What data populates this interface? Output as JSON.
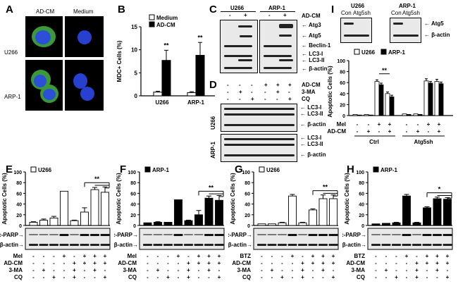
{
  "panels": {
    "A": {
      "letter": "A",
      "col_adcm": "AD-CM",
      "col_medium": "Medium",
      "row_u266": "U266",
      "row_arp1": "ARP-1"
    },
    "B": {
      "letter": "B",
      "ylabel": "MDC+ Cells (%)",
      "legend_medium": "Medium",
      "legend_adcm": "AD-CM",
      "sig1": "**",
      "sig2": "**"
    },
    "C": {
      "letter": "C",
      "cell1": "U266",
      "cell2": "ARP-1",
      "adcm_label": "AD-CM",
      "signs": [
        "-",
        "+",
        "-",
        "+"
      ],
      "bands": [
        "Atg3",
        "Atg5",
        "Beclin-1",
        "LC3-I",
        "LC3-II",
        "β-actin"
      ]
    },
    "D": {
      "letter": "D",
      "treat": [
        "AD-CM",
        "3-MA",
        "CQ"
      ],
      "signs": [
        [
          "-",
          "-",
          "-",
          "+",
          "+",
          "+"
        ],
        [
          "-",
          "+",
          "-",
          "-",
          "+",
          "-"
        ],
        [
          "-",
          "-",
          "+",
          "-",
          "-",
          "+"
        ]
      ],
      "row1": "U266",
      "row2": "ARP-1",
      "bands": [
        "LC3-I",
        "LC3-II",
        "β-actin"
      ]
    },
    "I": {
      "letter": "I",
      "cell1": "U266",
      "cell2": "ARP-1",
      "lanes": [
        "Con",
        "Atg5sh",
        "Con",
        "Atg5sh"
      ],
      "bands": [
        "Atg5",
        "β-actin"
      ],
      "legend1": "U266",
      "legend2": "ARP-1",
      "ylabel": "Apoptotic Cells (%)",
      "sig": "**",
      "rows": [
        {
          "label": "Mel",
          "signs": [
            "-",
            "-",
            "+",
            "+",
            "-",
            "-",
            "+",
            "+"
          ]
        },
        {
          "label": "AD-CM",
          "signs": [
            "-",
            "+",
            "-",
            "+",
            "-",
            "+",
            "-",
            "+"
          ]
        }
      ],
      "groups": [
        "Ctrl",
        "Atg5sh"
      ]
    },
    "E": {
      "letter": "E",
      "legend": "U266",
      "sig": "**",
      "ylabel": "Apoptotic Cells (%)",
      "drug": "Mel"
    },
    "F": {
      "letter": "F",
      "legend": "ARP-1",
      "sig": "**",
      "ylabel": "Apoptotic Cells (%)",
      "drug": "Mel"
    },
    "G": {
      "letter": "G",
      "legend": "U266",
      "sig": "**",
      "ylabel": "Apoptotic Cells (%)",
      "drug": "BTZ"
    },
    "H": {
      "letter": "H",
      "legend": "ARP-1",
      "sig": "*",
      "ylabel": "Apoptotic Cells (%)",
      "drug": "BTZ"
    },
    "blot_common": {
      "cparp": "c-PARP",
      "bactin": "β-actin",
      "rows": [
        {
          "label": "AD-CM",
          "signs": [
            "-",
            "-",
            "-",
            "-",
            "+",
            "+",
            "+",
            "+"
          ]
        },
        {
          "label": "3-MA",
          "signs": [
            "-",
            "+",
            "-",
            "-",
            "+",
            "-",
            "+",
            "-"
          ]
        },
        {
          "label": "CQ",
          "signs": [
            "-",
            "-",
            "+",
            "-",
            "+",
            "-",
            "-",
            "+"
          ]
        }
      ],
      "drug_signs": [
        "-",
        "-",
        "-",
        "+",
        "-",
        "+",
        "+",
        "+"
      ]
    }
  },
  "chart_data": [
    {
      "type": "bar",
      "panel": "B",
      "categories": [
        "U266",
        "ARP-1"
      ],
      "ylabel": "MDC+ Cells (%)",
      "ylim": [
        0,
        15
      ],
      "yticks": [
        0,
        5,
        10,
        15
      ],
      "series": [
        {
          "name": "Medium",
          "values": [
            0.8,
            0.7
          ],
          "errors": [
            0.2,
            0.2
          ]
        },
        {
          "name": "AD-CM",
          "values": [
            7.7,
            8.8
          ],
          "errors": [
            2.2,
            2.8
          ]
        }
      ]
    },
    {
      "type": "bar",
      "panel": "E",
      "ylabel": "Apoptotic Cells (%)",
      "ylim": [
        0,
        100
      ],
      "yticks": [
        0,
        20,
        40,
        60,
        80,
        100
      ],
      "series": [
        {
          "name": "U266",
          "values": [
            6,
            10,
            14,
            64,
            9,
            25,
            67,
            62
          ],
          "errors": [
            1,
            2,
            3,
            0,
            1,
            8,
            4,
            10
          ],
          "fill": "white"
        }
      ]
    },
    {
      "type": "bar",
      "panel": "F",
      "ylabel": "Apoptotic Cells (%)",
      "ylim": [
        0,
        100
      ],
      "yticks": [
        0,
        20,
        40,
        60,
        80,
        100
      ],
      "series": [
        {
          "name": "ARP-1",
          "values": [
            5,
            6,
            6,
            48,
            9,
            20,
            51,
            47
          ],
          "errors": [
            0,
            1,
            0,
            0,
            1,
            8,
            4,
            9
          ],
          "fill": "black"
        }
      ]
    },
    {
      "type": "bar",
      "panel": "G",
      "ylabel": "Apoptotic Cells (%)",
      "ylim": [
        0,
        100
      ],
      "yticks": [
        0,
        20,
        40,
        60,
        80,
        100
      ],
      "series": [
        {
          "name": "U266",
          "values": [
            3,
            3,
            5,
            55,
            5,
            29,
            50,
            50
          ],
          "errors": [
            0,
            0,
            1,
            3,
            1,
            2,
            7,
            7
          ],
          "fill": "white"
        }
      ]
    },
    {
      "type": "bar",
      "panel": "H",
      "ylabel": "Apoptotic Cells (%)",
      "ylim": [
        0,
        100
      ],
      "yticks": [
        0,
        20,
        40,
        60,
        80,
        100
      ],
      "series": [
        {
          "name": "ARP-1",
          "values": [
            3,
            4,
            5,
            55,
            5,
            33,
            50,
            49
          ],
          "errors": [
            0,
            0,
            1,
            3,
            1,
            2,
            3,
            3
          ],
          "fill": "black"
        }
      ]
    },
    {
      "type": "bar",
      "panel": "I",
      "ylabel": "Apoptotic Cells (%)",
      "ylim": [
        0,
        100
      ],
      "yticks": [
        0,
        20,
        40,
        60,
        80,
        100
      ],
      "categories": [
        "-/-",
        "-/+",
        "+/-",
        "+/+",
        "-/-",
        "-/+",
        "+/-",
        "+/+"
      ],
      "series": [
        {
          "name": "U266",
          "values": [
            2,
            2,
            62,
            40,
            3,
            3,
            63,
            62
          ],
          "errors": [
            0,
            0,
            3,
            3,
            0,
            0,
            4,
            4
          ]
        },
        {
          "name": "ARP-1",
          "values": [
            1,
            1,
            56,
            34,
            2,
            2,
            59,
            58
          ],
          "errors": [
            0,
            0,
            3,
            3,
            0,
            0,
            3,
            3
          ]
        }
      ]
    }
  ]
}
